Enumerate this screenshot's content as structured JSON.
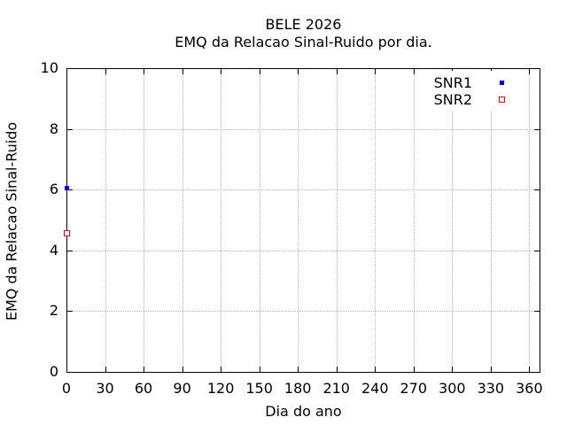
{
  "chart_data": {
    "type": "scatter",
    "title_line1": "BELE 2026",
    "title_line2": "EMQ da Relacao Sinal-Ruido por dia.",
    "xlabel": "Dia do ano",
    "ylabel": "EMQ da Relacao Sinal-Ruido",
    "xlim": [
      0,
      368
    ],
    "ylim": [
      0,
      10
    ],
    "xticks": [
      0,
      30,
      60,
      90,
      120,
      150,
      180,
      210,
      240,
      270,
      300,
      330,
      360
    ],
    "yticks": [
      0,
      2,
      4,
      6,
      8,
      10
    ],
    "grid": true,
    "legend_position": "top-right-inside",
    "series": [
      {
        "name": "SNR1",
        "marker": "filled-square",
        "color": "#0000ff",
        "points": [
          {
            "x": 0,
            "y": 6.05
          }
        ]
      },
      {
        "name": "SNR2",
        "marker": "open-square",
        "color": "#ff0000",
        "points": [
          {
            "x": 0,
            "y": 4.55
          }
        ]
      }
    ],
    "colors": {
      "background": "#ffffff",
      "frame": "#000000",
      "grid": "#b4b4b4",
      "text": "#000000"
    }
  }
}
